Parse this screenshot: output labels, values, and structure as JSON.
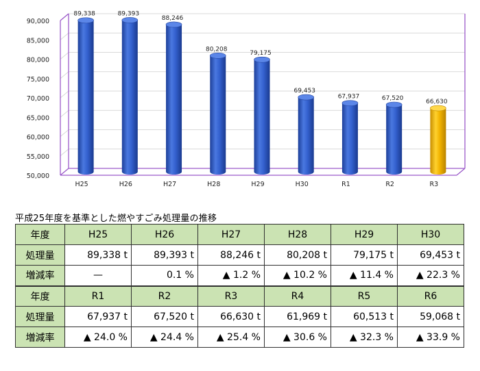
{
  "chart_data": {
    "type": "bar",
    "categories": [
      "H25",
      "H26",
      "H27",
      "H28",
      "H29",
      "H30",
      "R1",
      "R2",
      "R3"
    ],
    "values": [
      89338,
      89393,
      88246,
      80208,
      79175,
      69453,
      67937,
      67520,
      66630
    ],
    "data_labels": [
      "89,338",
      "89,393",
      "88,246",
      "80,208",
      "79,175",
      "69,453",
      "67,937",
      "67,520",
      "66,630"
    ],
    "ylim": [
      50000,
      90000
    ],
    "yticks": [
      "50,000",
      "55,000",
      "60,000",
      "65,000",
      "70,000",
      "75,000",
      "80,000",
      "85,000",
      "90,000"
    ],
    "highlight_index": 8,
    "colors": {
      "bar": "#2f5bc8",
      "highlight": "#f2b400",
      "axis": "#9b59c9",
      "grid": "#d9d9d9"
    },
    "title": "",
    "xlabel": "",
    "ylabel": ""
  },
  "table": {
    "caption": "平成25年度を基準とした燃やすごみ処理量の推移",
    "row_headers": {
      "year": "年度",
      "amount": "処理量",
      "change": "増減率"
    },
    "block1": {
      "years": [
        "H25",
        "H26",
        "H27",
        "H28",
        "H29",
        "H30"
      ],
      "amounts": [
        "89,338 t",
        "89,393 t",
        "88,246 t",
        "80,208 t",
        "79,175 t",
        "69,453 t"
      ],
      "changes": [
        "—",
        "0.1 %",
        "▲ 1.2 %",
        "▲ 10.2 %",
        "▲ 11.4 %",
        "▲ 22.3 %"
      ]
    },
    "block2": {
      "years": [
        "R1",
        "R2",
        "R3",
        "R4",
        "R5",
        "R6"
      ],
      "amounts": [
        "67,937 t",
        "67,520 t",
        "66,630 t",
        "61,969 t",
        "60,513 t",
        "59,068 t"
      ],
      "changes": [
        "▲ 24.0 %",
        "▲ 24.4 %",
        "▲ 25.4 %",
        "▲ 30.6 %",
        "▲ 32.3 %",
        "▲ 33.9 %"
      ]
    }
  }
}
